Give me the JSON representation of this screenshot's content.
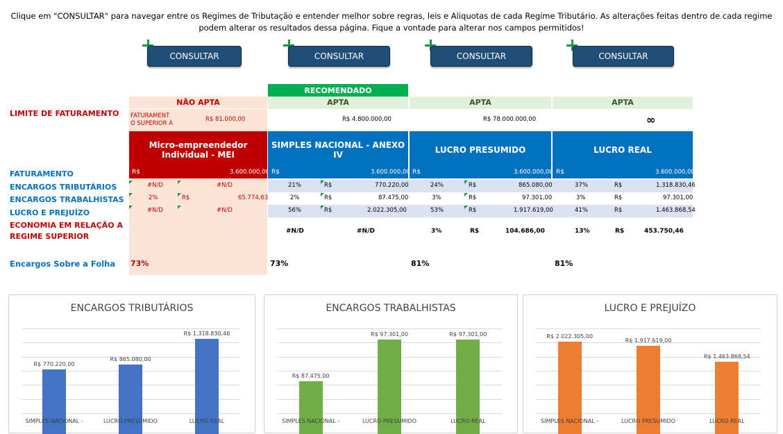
{
  "intro": "Clique em \"CONSULTAR\" para navegar entre os Regimes de Tributação e entender melhor sobre regras, leis e Aliquotas de cada Regime Tributário. As alterações feitas dentro de cada regime podem alterar os resultados dessa página. Fique a vontade para alterar nos campos permitidos!",
  "buttons": [
    "CONSULTAR",
    "CONSULTAR",
    "CONSULTAR",
    "CONSULTAR"
  ],
  "recommended": "RECOMENDADO",
  "labels": {
    "limite": "LIMITE DE FATURAMENTO",
    "faturamento": "FATURAMENTO",
    "encargos_trib": "ENCARGOS TRIBUTÁRIOS",
    "encargos_trab": "ENCARGOS TRABALHISTAS",
    "lucro": "LUCRO E PREJUÍZO",
    "economia_1": "ECONOMIA EM RELAÇÃO A",
    "economia_2": "REGIME SUPERIOR",
    "folha": "Encargos Sobre a Folha"
  },
  "mei": {
    "status": "NÃO APTA",
    "limit_note_1": "FATURAMENT",
    "limit_note_2": "O SUPERIOR À",
    "limit_value": "R$ 81.000,00",
    "name": "Micro-empreendedor Individual - MEI",
    "fat_cur": "R$",
    "fat_val": "3.600.000,00",
    "trib_a": "#N/D",
    "trib_b": "#N/D",
    "trab_pct": "2%",
    "trab_cur": "R$",
    "trab_val": "65.774,63",
    "lucro_a": "#N/D",
    "lucro_b": "#N/D",
    "folha": "73%"
  },
  "simples": {
    "status": "APTA",
    "limit": "R$ 4.800.000,00",
    "name": "SIMPLES NACIONAL - ANEXO IV",
    "fat_cur": "R$",
    "fat_val": "3.600.000,00",
    "trib_pct": "21%",
    "trib_cur": "R$",
    "trib_val": "770.220,00",
    "trab_pct": "2%",
    "trab_cur": "R$",
    "trab_val": "87.475,00",
    "lucro_pct": "56%",
    "lucro_cur": "R$",
    "lucro_val": "2.022.305,00",
    "eco_a": "#N/D",
    "eco_b": "#N/D",
    "folha": "73%"
  },
  "presumido": {
    "status": "APTA",
    "limit": "R$ 78.000.000,00",
    "name": "LUCRO PRESUMIDO",
    "fat_cur": "R$",
    "fat_val": "3.600.000,00",
    "trib_pct": "24%",
    "trib_cur": "R$",
    "trib_val": "865.080,00",
    "trab_pct": "3%",
    "trab_cur": "R$",
    "trab_val": "97.301,00",
    "lucro_pct": "53%",
    "lucro_cur": "R$",
    "lucro_val": "1.917.619,00",
    "eco_pct": "3%",
    "eco_cur": "R$",
    "eco_val": "104.686,00",
    "folha": "81%"
  },
  "real": {
    "status": "APTA",
    "limit": "∞",
    "name": "LUCRO REAL",
    "fat_cur": "R$",
    "fat_val": "3.600.000,00",
    "trib_pct": "37%",
    "trib_cur": "R$",
    "trib_val": "1.318.830,46",
    "trab_pct": "3%",
    "trab_cur": "R$",
    "trab_val": "97.301,00",
    "lucro_pct": "41%",
    "lucro_cur": "R$",
    "lucro_val": "1.463.868,54",
    "eco_pct": "13%",
    "eco_cur": "R$",
    "eco_val": "453.750,46",
    "folha": "81%"
  },
  "colors": {
    "mei_red": "#c00000",
    "mei_bg": "#fbe3d6",
    "blue": "#0070c0",
    "recommended": "#00b050",
    "apta_bg": "#e2efda",
    "row_blue": "#d9e1f2"
  },
  "chart_data": [
    {
      "type": "bar",
      "title": "ENCARGOS TRIBUTÁRIOS",
      "categories": [
        "SIMPLES NACIONAL -",
        "LUCRO PRESUMIDO",
        "LUCRO REAL"
      ],
      "values": [
        770220.0,
        865080.0,
        1318830.46
      ],
      "labels": [
        "R$ 770.220,00",
        "R$ 865.080,00",
        "R$ 1.318.830,46"
      ],
      "color": "#4472c4",
      "ymax": 1500000
    },
    {
      "type": "bar",
      "title": "ENCARGOS TRABALHISTAS",
      "categories": [
        "SIMPLES NACIONAL -",
        "LUCRO PRESUMIDO",
        "LUCRO REAL"
      ],
      "values": [
        87475.0,
        97301.0,
        97301.0
      ],
      "labels": [
        "R$ 87.475,00",
        "R$ 97.301,00",
        "R$ 97.301,00"
      ],
      "color": "#70ad47",
      "ymin": 80000,
      "ymax": 100000
    },
    {
      "type": "bar",
      "title": "LUCRO E PREJUÍZO",
      "categories": [
        "SIMPLES NACIONAL -",
        "LUCRO PRESUMIDO",
        "LUCRO REAL"
      ],
      "values": [
        2022305.0,
        1917619.0,
        1463868.54
      ],
      "labels": [
        "R$ 2.022.305,00",
        "R$ 1.917.619,00",
        "R$ 1.463.868,54"
      ],
      "color": "#ed7d31",
      "ymax": 2400000
    }
  ]
}
